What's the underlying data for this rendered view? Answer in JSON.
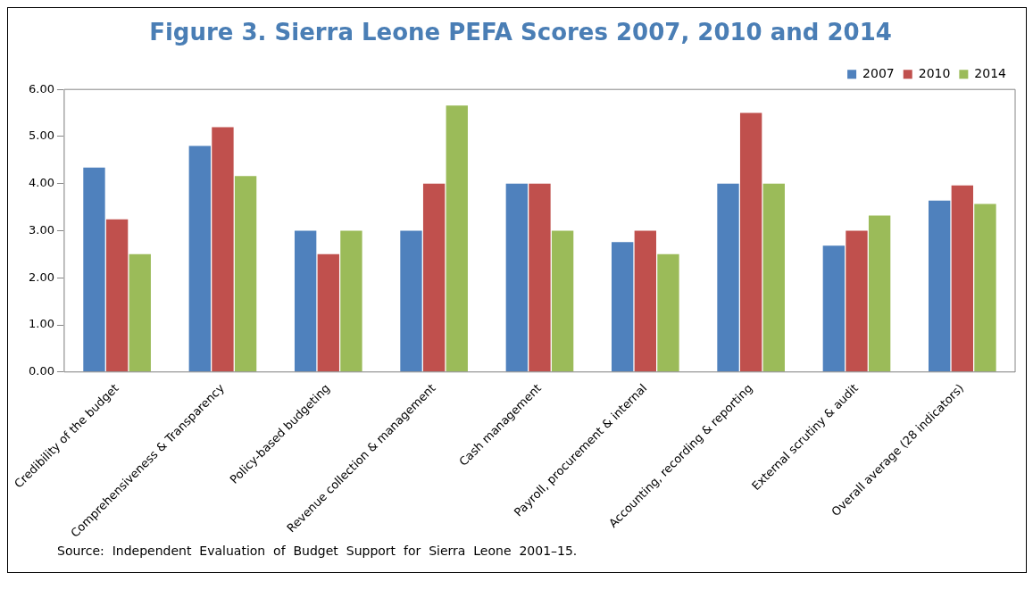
{
  "chart_data": {
    "type": "bar",
    "title": "Figure 3. Sierra Leone PEFA Scores 2007, 2010 and 2014",
    "categories": [
      "Credibility of the budget",
      "Comprehensiveness & Transparency",
      "Policy-based budgeting",
      "Revenue collection & management",
      "Cash management",
      "Payroll, procurement & internal",
      "Accounting, recording & reporting",
      "External scrutiny & audit",
      "Overall average (28 indicators)"
    ],
    "series": [
      {
        "name": "2007",
        "color": "#4f81bd",
        "values": [
          4.34,
          4.8,
          3.0,
          3.0,
          4.0,
          2.76,
          4.0,
          2.68,
          3.64
        ]
      },
      {
        "name": "2010",
        "color": "#c0504d",
        "values": [
          3.24,
          5.2,
          2.5,
          4.0,
          4.0,
          3.0,
          5.5,
          3.0,
          3.96
        ]
      },
      {
        "name": "2014",
        "color": "#9bbb59",
        "values": [
          2.5,
          4.16,
          3.0,
          5.66,
          3.0,
          2.5,
          4.0,
          3.32,
          3.57
        ]
      }
    ],
    "ylim": [
      0,
      6
    ],
    "yticks": [
      {
        "value": 0,
        "label": "0.00"
      },
      {
        "value": 1,
        "label": "1.00"
      },
      {
        "value": 2,
        "label": "2.00"
      },
      {
        "value": 3,
        "label": "3.00"
      },
      {
        "value": 4,
        "label": "4.00"
      },
      {
        "value": 5,
        "label": "5.00"
      },
      {
        "value": 6,
        "label": "6.00"
      }
    ],
    "grid": false,
    "legend": "top right",
    "annotations": [
      "Source:  Independent  Evaluation  of  Budget  Support  for  Sierra  Leone  2001–15."
    ]
  }
}
